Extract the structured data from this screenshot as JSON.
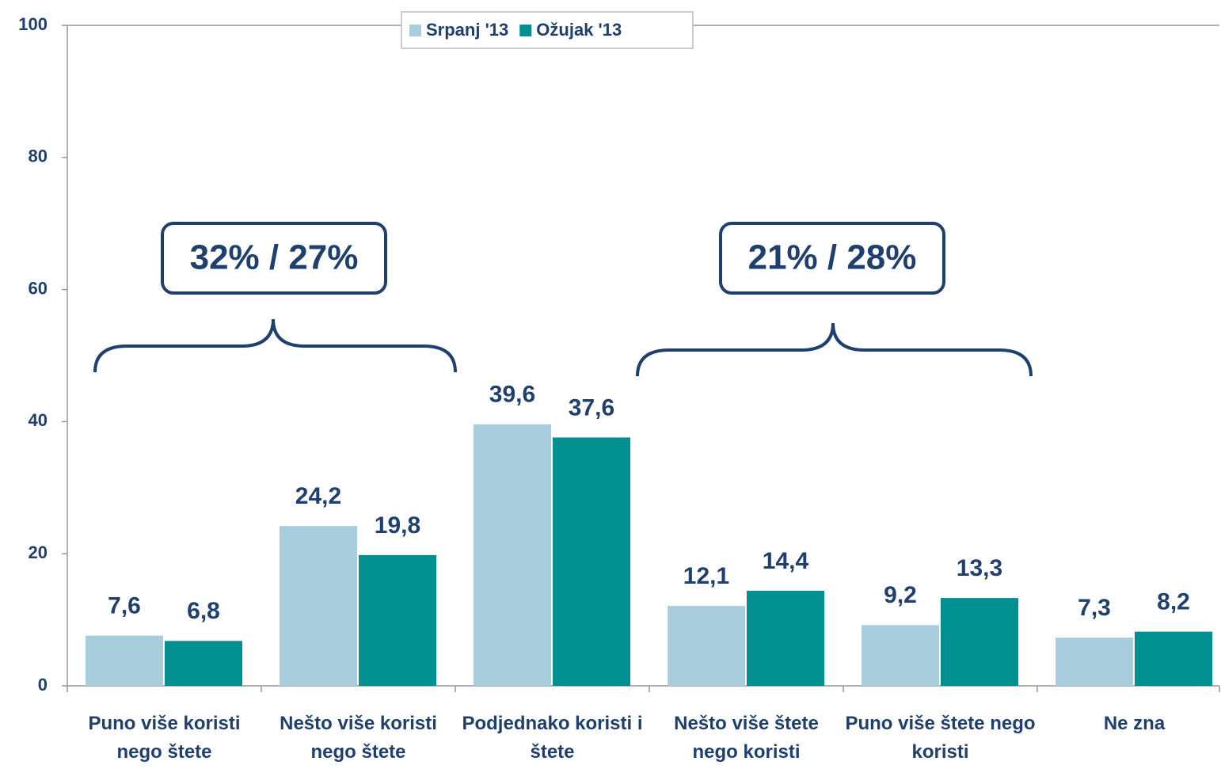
{
  "chart_data": {
    "type": "bar",
    "categories": [
      "Puno više koristi nego štete",
      "Nešto više koristi nego štete",
      "Podjednako koristi i štete",
      "Nešto više štete nego koristi",
      "Puno više štete nego koristi",
      "Ne zna"
    ],
    "series": [
      {
        "name": "Srpanj '13",
        "color": "#a8cddc",
        "values": [
          7.6,
          24.2,
          39.6,
          12.1,
          9.2,
          7.3
        ],
        "value_labels": [
          "7,6",
          "24,2",
          "39,6",
          "12,1",
          "9,2",
          "7,3"
        ]
      },
      {
        "name": "Ožujak '13",
        "color": "#009090",
        "values": [
          6.8,
          19.8,
          37.6,
          14.4,
          13.3,
          8.2
        ],
        "value_labels": [
          "6,8",
          "19,8",
          "37,6",
          "14,4",
          "13,3",
          "8,2"
        ]
      }
    ],
    "ylim": [
      0,
      100
    ],
    "yticks": [
      0,
      20,
      40,
      60,
      80,
      100
    ],
    "grid": false,
    "legend": "top",
    "annotations": [
      "32% / 27%",
      "21% / 28%"
    ]
  }
}
